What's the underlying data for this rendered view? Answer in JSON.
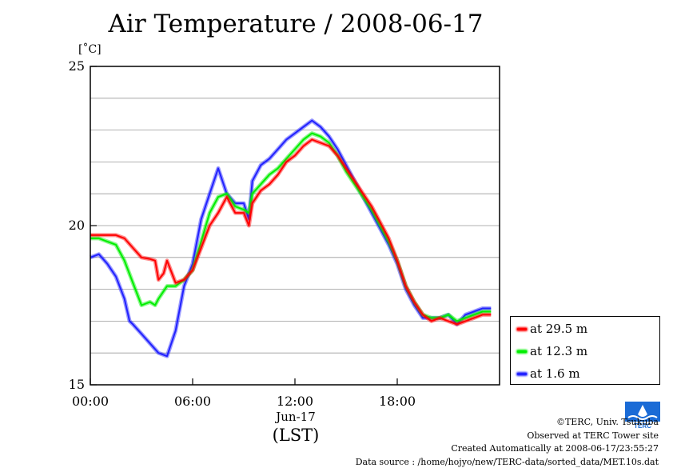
{
  "chart_data": {
    "type": "line",
    "title": "Air Temperature / 2008-06-17",
    "ylabel": "[˚C]",
    "xlabel": "(LST)",
    "date_label": "Jun-17",
    "x_unit": "hours",
    "xlim": [
      0,
      24
    ],
    "ylim": [
      15,
      25
    ],
    "y_ticks": [
      {
        "value": 15,
        "label": "15"
      },
      {
        "value": 20,
        "label": "20"
      },
      {
        "value": 25,
        "label": "25"
      }
    ],
    "x_ticks": [
      {
        "value": 0,
        "label": "00:00"
      },
      {
        "value": 6,
        "label": "06:00"
      },
      {
        "value": 12,
        "label": "12:00"
      },
      {
        "value": 18,
        "label": "18:00"
      }
    ],
    "grid": {
      "horizontal": true,
      "vertical": false,
      "step": 1
    },
    "legend_position": "right",
    "series": [
      {
        "name": "at 29.5 m",
        "color": "#ff0000",
        "x": [
          0,
          0.5,
          1,
          1.5,
          2,
          2.5,
          3,
          3.5,
          3.8,
          4,
          4.3,
          4.5,
          5,
          5.5,
          6,
          6.5,
          7,
          7.5,
          8,
          8.5,
          9,
          9.3,
          9.5,
          10,
          10.5,
          11,
          11.5,
          12,
          12.5,
          13,
          13.5,
          14,
          14.5,
          15,
          15.5,
          16,
          16.5,
          17,
          17.5,
          18,
          18.5,
          19,
          19.5,
          20,
          20.5,
          21,
          21.5,
          22,
          22.5,
          23,
          23.5
        ],
        "values": [
          19.7,
          19.7,
          19.7,
          19.7,
          19.6,
          19.3,
          19,
          18.95,
          18.9,
          18.3,
          18.5,
          18.9,
          18.2,
          18.3,
          18.6,
          19.3,
          20,
          20.4,
          20.9,
          20.4,
          20.4,
          20.0,
          20.7,
          21.1,
          21.3,
          21.6,
          22.0,
          22.2,
          22.5,
          22.7,
          22.6,
          22.5,
          22.2,
          21.8,
          21.4,
          21.0,
          20.6,
          20.1,
          19.6,
          18.9,
          18.1,
          17.6,
          17.2,
          17.0,
          17.1,
          17.0,
          16.9,
          17.0,
          17.1,
          17.2,
          17.2
        ]
      },
      {
        "name": "at 12.3 m",
        "color": "#00ee00",
        "x": [
          0,
          0.5,
          1,
          1.5,
          2,
          2.5,
          3,
          3.5,
          3.8,
          4,
          4.5,
          5,
          5.5,
          6,
          6.5,
          7,
          7.5,
          8,
          8.5,
          9,
          9.3,
          9.5,
          10,
          10.5,
          11,
          11.5,
          12,
          12.5,
          13,
          13.5,
          14,
          14.5,
          15,
          15.5,
          16,
          16.5,
          17,
          17.5,
          18,
          18.5,
          19,
          19.5,
          20,
          20.5,
          21,
          21.5,
          22,
          22.5,
          23,
          23.5
        ],
        "values": [
          19.6,
          19.6,
          19.5,
          19.4,
          18.9,
          18.2,
          17.5,
          17.6,
          17.5,
          17.7,
          18.1,
          18.1,
          18.3,
          18.6,
          19.5,
          20.4,
          20.9,
          21.0,
          20.6,
          20.5,
          20.4,
          21.0,
          21.3,
          21.6,
          21.8,
          22.1,
          22.4,
          22.7,
          22.9,
          22.8,
          22.6,
          22.2,
          21.7,
          21.3,
          20.9,
          20.5,
          20.0,
          19.5,
          18.9,
          18.1,
          17.6,
          17.2,
          17.1,
          17.1,
          17.2,
          17.0,
          17.1,
          17.2,
          17.3,
          17.3
        ]
      },
      {
        "name": "at 1.6 m",
        "color": "#2222ff",
        "x": [
          0,
          0.5,
          1,
          1.5,
          2,
          2.3,
          2.5,
          3,
          3.5,
          4,
          4.5,
          5,
          5.5,
          6,
          6.5,
          7,
          7.5,
          8,
          8.5,
          9,
          9.3,
          9.5,
          10,
          10.5,
          11,
          11.5,
          12,
          12.5,
          13,
          13.5,
          14,
          14.5,
          15,
          15.5,
          16,
          16.5,
          17,
          17.5,
          18,
          18.5,
          19,
          19.5,
          20,
          20.5,
          21,
          21.5,
          22,
          22.5,
          23,
          23.5
        ],
        "values": [
          19.0,
          19.1,
          18.8,
          18.4,
          17.7,
          17.0,
          16.9,
          16.6,
          16.3,
          16.0,
          15.9,
          16.7,
          18.1,
          18.8,
          20.2,
          21.0,
          21.8,
          21.0,
          20.7,
          20.7,
          20.2,
          21.4,
          21.9,
          22.1,
          22.4,
          22.7,
          22.9,
          23.1,
          23.3,
          23.1,
          22.8,
          22.4,
          21.9,
          21.4,
          20.9,
          20.4,
          19.9,
          19.4,
          18.8,
          18.0,
          17.5,
          17.1,
          17.1,
          17.1,
          17.2,
          16.9,
          17.2,
          17.3,
          17.4,
          17.4
        ]
      }
    ]
  },
  "credits": {
    "copyright": "©TERC, Univ. Tsukuba",
    "observed": "Observed at TERC Tower site",
    "created": "Created Automatically at 2008-06-17/23:55:27",
    "source": "Data source : /home/hojyo/new/TERC-data/sorted_data/MET.10s.dat"
  },
  "logo": {
    "text": "TERC",
    "color": "#1a6bd6"
  }
}
